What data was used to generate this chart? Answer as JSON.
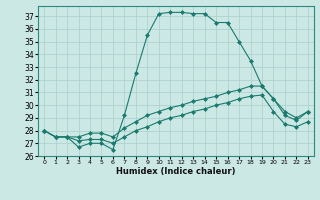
{
  "xlabel": "Humidex (Indice chaleur)",
  "bg_color": "#cce8e5",
  "grid_color": "#aacfcc",
  "line_color": "#1a7a6e",
  "xlim": [
    -0.5,
    23.5
  ],
  "ylim": [
    26,
    37.8
  ],
  "yticks": [
    26,
    27,
    28,
    29,
    30,
    31,
    32,
    33,
    34,
    35,
    36,
    37
  ],
  "xticks": [
    0,
    1,
    2,
    3,
    4,
    5,
    6,
    7,
    8,
    9,
    10,
    11,
    12,
    13,
    14,
    15,
    16,
    17,
    18,
    19,
    20,
    21,
    22,
    23
  ],
  "series": [
    [
      28.0,
      27.5,
      27.5,
      26.7,
      27.0,
      27.0,
      26.5,
      29.2,
      32.5,
      35.5,
      37.2,
      37.3,
      37.3,
      37.2,
      37.2,
      36.5,
      36.5,
      35.0,
      33.5,
      31.5,
      30.5,
      29.2,
      28.8,
      29.5
    ],
    [
      28.0,
      27.5,
      27.5,
      27.5,
      27.8,
      27.8,
      27.5,
      28.2,
      28.7,
      29.2,
      29.5,
      29.8,
      30.0,
      30.3,
      30.5,
      30.7,
      31.0,
      31.2,
      31.5,
      31.5,
      30.5,
      29.5,
      29.0,
      29.5
    ],
    [
      28.0,
      27.5,
      27.5,
      27.2,
      27.3,
      27.3,
      27.0,
      27.5,
      28.0,
      28.3,
      28.7,
      29.0,
      29.2,
      29.5,
      29.7,
      30.0,
      30.2,
      30.5,
      30.7,
      30.8,
      29.5,
      28.5,
      28.3,
      28.7
    ]
  ]
}
